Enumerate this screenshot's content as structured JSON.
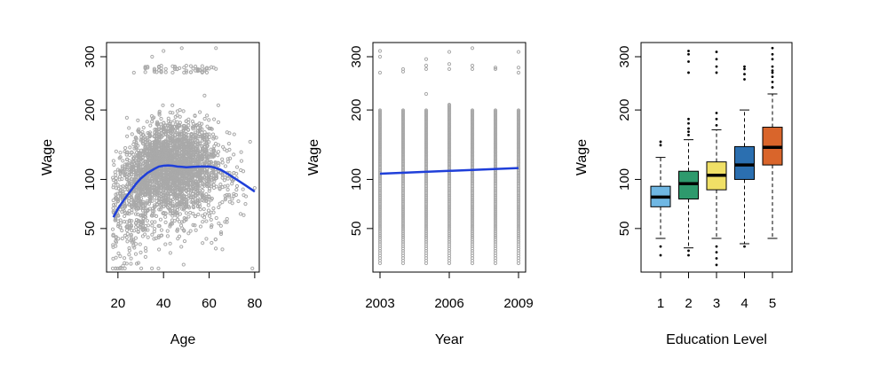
{
  "chart_data": [
    {
      "type": "scatter",
      "xlabel": "Age",
      "ylabel": "Wage",
      "xlim": [
        15,
        82
      ],
      "ylim": [
        20,
        330
      ],
      "xticks": [
        20,
        40,
        60,
        80
      ],
      "yticks": [
        50,
        100,
        200,
        300
      ],
      "grid": false,
      "point_color": "#a9a9a9",
      "point_count_estimate": 3000,
      "sample_points": [
        [
          19,
          40
        ],
        [
          20,
          62
        ],
        [
          22,
          70
        ],
        [
          24,
          80
        ],
        [
          25,
          66
        ],
        [
          28,
          95
        ],
        [
          30,
          102
        ],
        [
          32,
          110
        ],
        [
          35,
          125
        ],
        [
          38,
          135
        ],
        [
          40,
          150
        ],
        [
          42,
          112
        ],
        [
          45,
          160
        ],
        [
          48,
          118
        ],
        [
          50,
          170
        ],
        [
          52,
          125
        ],
        [
          55,
          140
        ],
        [
          58,
          112
        ],
        [
          60,
          118
        ],
        [
          62,
          100
        ],
        [
          65,
          108
        ],
        [
          68,
          105
        ],
        [
          70,
          95
        ],
        [
          72,
          88
        ],
        [
          75,
          110
        ],
        [
          78,
          150
        ],
        [
          80,
          90
        ],
        [
          27,
          268
        ],
        [
          35,
          300
        ],
        [
          40,
          312
        ],
        [
          48,
          318
        ],
        [
          55,
          275
        ],
        [
          63,
          318
        ],
        [
          58,
          225
        ]
      ],
      "series": [
        {
          "type": "smooth-fit",
          "color": "#1f3fd9",
          "x": [
            18,
            20,
            22,
            25,
            28,
            30,
            33,
            36,
            38,
            40,
            42,
            44,
            46,
            48,
            50,
            53,
            56,
            60,
            62,
            65,
            68,
            72,
            76,
            80
          ],
          "y": [
            60,
            68,
            75,
            85,
            95,
            101,
            108,
            113,
            116,
            117,
            117.5,
            117,
            116,
            115.5,
            115,
            115.5,
            116,
            116,
            115,
            112,
            107,
            100,
            93,
            86
          ]
        }
      ]
    },
    {
      "type": "scatter",
      "xlabel": "Year",
      "ylabel": "Wage",
      "xlim": [
        2002.9,
        2009.1
      ],
      "ylim": [
        20,
        330
      ],
      "xticks": [
        2003,
        2006,
        2009
      ],
      "yticks": [
        50,
        100,
        200,
        300
      ],
      "grid": false,
      "point_color": "#a9a9a9",
      "categories": [
        2003,
        2004,
        2005,
        2006,
        2007,
        2008,
        2009
      ],
      "column_ranges": [
        [
          25,
          200
        ],
        [
          25,
          200
        ],
        [
          25,
          200
        ],
        [
          25,
          210
        ],
        [
          25,
          200
        ],
        [
          25,
          200
        ],
        [
          25,
          200
        ]
      ],
      "outliers": [
        [
          2003,
          268
        ],
        [
          2003,
          300
        ],
        [
          2003,
          312
        ],
        [
          2004,
          270
        ],
        [
          2004,
          275
        ],
        [
          2005,
          275
        ],
        [
          2005,
          282
        ],
        [
          2005,
          295
        ],
        [
          2006,
          275
        ],
        [
          2006,
          285
        ],
        [
          2006,
          310
        ],
        [
          2007,
          275
        ],
        [
          2007,
          282
        ],
        [
          2007,
          318
        ],
        [
          2008,
          275
        ],
        [
          2008,
          278
        ],
        [
          2009,
          268
        ],
        [
          2009,
          278
        ],
        [
          2009,
          310
        ],
        [
          2005,
          228
        ]
      ],
      "series": [
        {
          "type": "linear-fit",
          "color": "#1f3fd9",
          "x": [
            2003,
            2009
          ],
          "y": [
            107,
            114
          ]
        }
      ]
    },
    {
      "type": "boxplot",
      "xlabel": "Education Level",
      "ylabel": "Wage",
      "ylim": [
        20,
        330
      ],
      "yticks": [
        50,
        100,
        200,
        300
      ],
      "grid": false,
      "categories": [
        "1",
        "2",
        "3",
        "4",
        "5"
      ],
      "boxes": [
        {
          "label": "1",
          "color": "#6fb7e3",
          "whisker_low": 42,
          "q1": 70,
          "median": 80,
          "q3": 92,
          "whisker_high": 128,
          "outliers": [
            30,
            36,
            145,
            150
          ]
        },
        {
          "label": "2",
          "color": "#2e9a6d",
          "whisker_low": 35,
          "q1": 78,
          "median": 95,
          "q3": 110,
          "whisker_high": 153,
          "outliers": [
            30,
            33,
            160,
            165,
            170,
            178,
            185,
            268,
            290,
            305,
            312
          ]
        },
        {
          "label": "3",
          "color": "#f0e066",
          "whisker_low": 42,
          "q1": 88,
          "median": 105,
          "q3": 122,
          "whisker_high": 168,
          "outliers": [
            24,
            28,
            32,
            36,
            175,
            185,
            195,
            268,
            280,
            295,
            310
          ]
        },
        {
          "label": "4",
          "color": "#2b6fb0",
          "whisker_low": 38,
          "q1": 100,
          "median": 118,
          "q3": 143,
          "whisker_high": 200,
          "outliers": [
            36,
            255,
            265,
            275,
            280
          ]
        },
        {
          "label": "5",
          "color": "#d9652b",
          "whisker_low": 42,
          "q1": 118,
          "median": 142,
          "q3": 172,
          "whisker_high": 228,
          "outliers": [
            240,
            250,
            260,
            268,
            272,
            280,
            295,
            305,
            318
          ]
        }
      ]
    }
  ]
}
